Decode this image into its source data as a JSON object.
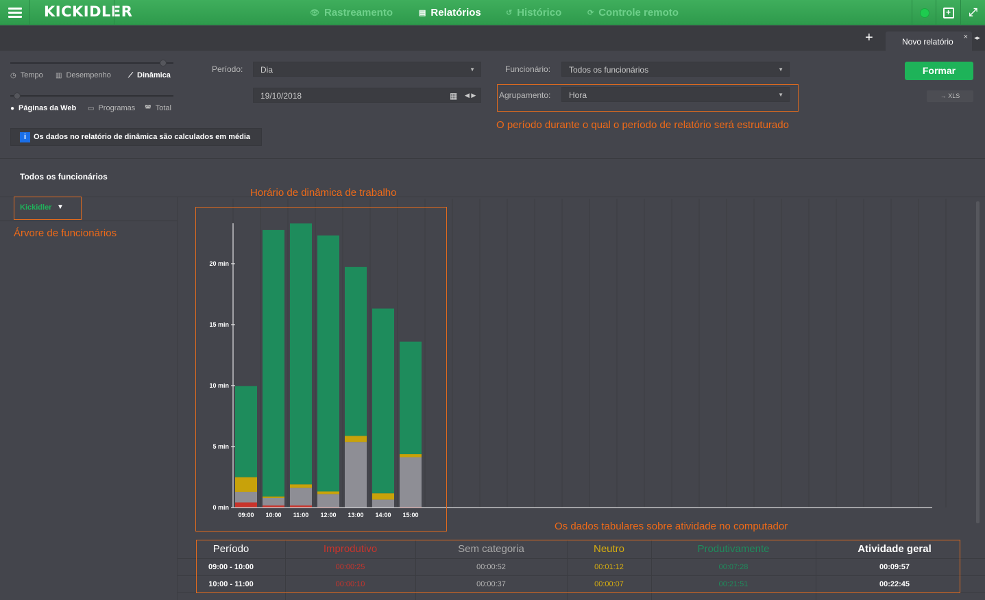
{
  "header": {
    "logo": "KICKIDLER",
    "nav": [
      {
        "icon": "👁",
        "label": "Rastreamento",
        "active": false
      },
      {
        "icon": "▤",
        "label": "Relatórios",
        "active": true
      },
      {
        "icon": "↺",
        "label": "Histórico",
        "active": false
      },
      {
        "icon": "⟳",
        "label": "Controle remoto",
        "active": false
      }
    ]
  },
  "tabs": {
    "plus": "+",
    "active_tab": "Novo relatório",
    "close": "×",
    "arrows": "◂▸"
  },
  "filters": {
    "mode1": [
      {
        "label": "Tempo",
        "selected": false
      },
      {
        "label": "Desempenho",
        "selected": false
      },
      {
        "label": "Dinâmica",
        "selected": true
      }
    ],
    "mode2": [
      {
        "label": "Páginas da Web",
        "selected": true
      },
      {
        "label": "Programas",
        "selected": false
      },
      {
        "label": "Total",
        "selected": false
      }
    ],
    "info": "Os dados no relatório de dinâmica são calculados em média",
    "period_label": "Período:",
    "period_value": "Dia",
    "date_value": "19/10/2018",
    "employee_label": "Funcionário:",
    "employee_value": "Todos os funcionários",
    "grouping_label": "Agrupamento:",
    "grouping_value": "Hora",
    "form_button": "Formar",
    "xls_button": "→ XLS"
  },
  "annotations": {
    "grouping": "O período durante o qual o período de relatório será estruturado",
    "chart": "Horário de dinâmica de trabalho",
    "tree": "Árvore de funcionários",
    "table": "Os dados tabulares sobre atividade no computador"
  },
  "employees": {
    "title": "Todos os funcionários",
    "tree_root": "Kickidler"
  },
  "chart_data": {
    "type": "bar",
    "stacked": true,
    "categories": [
      "09:00",
      "10:00",
      "11:00",
      "12:00",
      "13:00",
      "14:00",
      "15:00"
    ],
    "y_ticks": [
      "0 min",
      "5 min",
      "10 min",
      "15 min",
      "20 min"
    ],
    "y_tick_values": [
      0,
      5,
      10,
      15,
      20
    ],
    "ylim": [
      0,
      23.5
    ],
    "series": [
      {
        "key": "improdutivo",
        "color": "#c8342c",
        "values": [
          0.42,
          0.17,
          0.17,
          0.05,
          0.0,
          0.0,
          0.05
        ]
      },
      {
        "key": "sem_categoria",
        "color": "#8e8e95",
        "values": [
          0.87,
          0.62,
          1.45,
          1.05,
          5.38,
          0.65,
          4.08
        ]
      },
      {
        "key": "neutro",
        "color": "#c8a20a",
        "values": [
          1.2,
          0.12,
          0.28,
          0.22,
          0.5,
          0.52,
          0.25
        ]
      },
      {
        "key": "produtivamente",
        "color": "#1e8c5c",
        "values": [
          7.47,
          21.85,
          21.4,
          21.0,
          13.85,
          15.15,
          9.23
        ]
      }
    ]
  },
  "table": {
    "headers": [
      {
        "label": "Período",
        "color": "#ffffff"
      },
      {
        "label": "Improdutivo",
        "color": "#c8342c"
      },
      {
        "label": "Sem categoria",
        "color": "#a9a9a9"
      },
      {
        "label": "Neutro",
        "color": "#d6ad10"
      },
      {
        "label": "Produtivamente",
        "color": "#1e8c5c"
      },
      {
        "label": "Atividade geral",
        "color": "#ffffff"
      }
    ],
    "rows": [
      [
        "09:00 - 10:00",
        "00:00:25",
        "00:00:52",
        "00:01:12",
        "00:07:28",
        "00:09:57"
      ],
      [
        "10:00 - 11:00",
        "00:00:10",
        "00:00:37",
        "00:00:07",
        "00:21:51",
        "00:22:45"
      ]
    ]
  }
}
